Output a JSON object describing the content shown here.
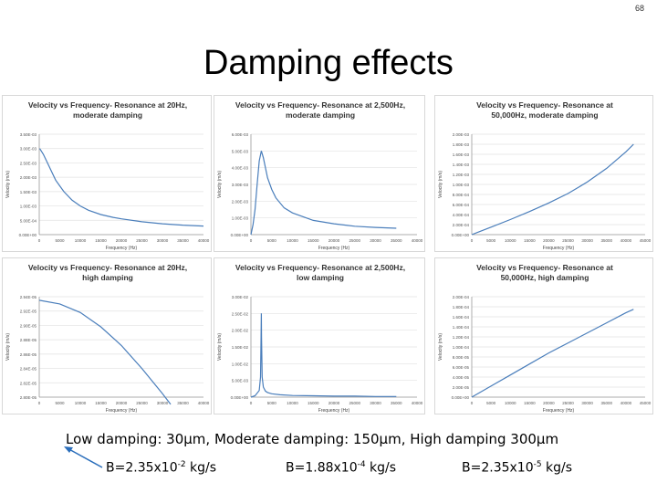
{
  "page_number": "68",
  "slide_title": "Damping effects",
  "caption": "Low damping: 30µm, Moderate damping: 150µm, High damping 300µm",
  "b_values": [
    {
      "prefix": "B=2.35x10",
      "exp": "-2",
      "unit": " kg/s"
    },
    {
      "prefix": "B=1.88x10",
      "exp": "-4",
      "unit": " kg/s"
    },
    {
      "prefix": "B=2.35x10",
      "exp": "-5",
      "unit": " kg/s"
    }
  ],
  "chart_data": [
    {
      "type": "line",
      "title": "Velocity vs Frequency- Resonance at 20Hz, moderate damping",
      "xlabel": "Frequency (Hz)",
      "ylabel": "Velocity (m/s)",
      "xticks": [
        "0",
        "5000",
        "10000",
        "15000",
        "20000",
        "25000",
        "30000",
        "35000",
        "40000"
      ],
      "yticks": [
        "0.00E+00",
        "5.00E-04",
        "1.00E-03",
        "1.50E-03",
        "2.00E-03",
        "2.50E-03",
        "3.00E-03",
        "3.50E-03"
      ],
      "xlim": [
        0,
        40000
      ],
      "ylim": [
        0,
        0.0035
      ],
      "x": [
        100,
        1000,
        2000,
        3000,
        4000,
        5000,
        6000,
        8000,
        10000,
        12000,
        15000,
        18000,
        20000,
        25000,
        30000,
        35000,
        40000
      ],
      "y": [
        0.003,
        0.0028,
        0.0025,
        0.0022,
        0.0019,
        0.0017,
        0.0015,
        0.0012,
        0.001,
        0.00085,
        0.0007,
        0.0006,
        0.00055,
        0.00045,
        0.00038,
        0.00033,
        0.0003
      ]
    },
    {
      "type": "line",
      "title": "Velocity vs Frequency- Resonance at 2,500Hz, moderate damping",
      "xlabel": "Frequency (Hz)",
      "ylabel": "Velocity (m/s)",
      "xticks": [
        "0",
        "5000",
        "10000",
        "15000",
        "20000",
        "25000",
        "30000",
        "35000",
        "40000"
      ],
      "yticks": [
        "0.00E+00",
        "1.00E-03",
        "2.00E-03",
        "3.00E-03",
        "4.00E-03",
        "5.00E-03",
        "6.00E-03"
      ],
      "xlim": [
        0,
        40000
      ],
      "ylim": [
        0,
        0.006
      ],
      "x": [
        0,
        500,
        1000,
        1500,
        2000,
        2500,
        3000,
        3500,
        4000,
        5000,
        6000,
        8000,
        10000,
        15000,
        20000,
        25000,
        30000,
        35000
      ],
      "y": [
        0.0,
        0.0006,
        0.0015,
        0.003,
        0.0044,
        0.005,
        0.0046,
        0.004,
        0.0034,
        0.0027,
        0.0022,
        0.0016,
        0.0013,
        0.00085,
        0.00065,
        0.0005,
        0.00043,
        0.00038
      ]
    },
    {
      "type": "line",
      "title": "Velocity vs Frequency- Resonance at 50,000Hz, moderate damping",
      "xlabel": "Frequency (Hz)",
      "ylabel": "Velocity (m/s)",
      "xticks": [
        "0",
        "5000",
        "10000",
        "15000",
        "20000",
        "25000",
        "30000",
        "35000",
        "40000",
        "45000"
      ],
      "yticks": [
        "0.00E+00",
        "2.00E-04",
        "4.00E-04",
        "6.00E-04",
        "8.00E-04",
        "1.00E-03",
        "1.20E-03",
        "1.40E-03",
        "1.60E-03",
        "1.80E-03",
        "2.00E-03"
      ],
      "xlim": [
        0,
        45000
      ],
      "ylim": [
        0,
        0.002
      ],
      "x": [
        0,
        5000,
        10000,
        15000,
        20000,
        25000,
        30000,
        35000,
        40000,
        42000
      ],
      "y": [
        0.0,
        0.00015,
        0.0003,
        0.00046,
        0.00063,
        0.00082,
        0.00105,
        0.00132,
        0.00165,
        0.0018
      ]
    },
    {
      "type": "line",
      "title": "Velocity vs Frequency- Resonance at 20Hz, high damping",
      "xlabel": "Frequency (Hz)",
      "ylabel": "Velocity (m/s)",
      "xticks": [
        "0",
        "5000",
        "10000",
        "15000",
        "20000",
        "25000",
        "30000",
        "35000",
        "40000"
      ],
      "yticks": [
        "2.80E-05",
        "2.82E-05",
        "2.84E-05",
        "2.86E-05",
        "2.88E-05",
        "2.90E-05",
        "2.92E-05",
        "2.94E-05"
      ],
      "xlim": [
        0,
        40000
      ],
      "ylim": [
        2.8e-05,
        2.94e-05
      ],
      "x": [
        0,
        5000,
        10000,
        15000,
        20000,
        25000,
        30000,
        32000
      ],
      "y": [
        2.935e-05,
        2.93e-05,
        2.918e-05,
        2.898e-05,
        2.872e-05,
        2.84e-05,
        2.805e-05,
        2.79e-05
      ]
    },
    {
      "type": "line",
      "title": "Velocity vs Frequency- Resonance at 2,500Hz, low damping",
      "xlabel": "Frequency (Hz)",
      "ylabel": "Velocity (m/s)",
      "xticks": [
        "0",
        "5000",
        "10000",
        "15000",
        "20000",
        "25000",
        "30000",
        "35000",
        "40000"
      ],
      "yticks": [
        "0.00E+00",
        "5.00E-03",
        "1.00E-02",
        "1.50E-02",
        "2.00E-02",
        "2.50E-02",
        "3.00E-02"
      ],
      "xlim": [
        0,
        40000
      ],
      "ylim": [
        0,
        0.03
      ],
      "x": [
        0,
        1000,
        2000,
        2300,
        2450,
        2500,
        2550,
        2700,
        3000,
        3500,
        4000,
        5000,
        7000,
        10000,
        15000,
        20000,
        25000,
        30000,
        35000
      ],
      "y": [
        0.0,
        0.0004,
        0.002,
        0.006,
        0.018,
        0.025,
        0.018,
        0.006,
        0.003,
        0.0018,
        0.0014,
        0.001,
        0.0007,
        0.0005,
        0.0004,
        0.0003,
        0.0003,
        0.0002,
        0.0002
      ]
    },
    {
      "type": "line",
      "title": "Velocity vs Frequency- Resonance at 50,000Hz, high damping",
      "xlabel": "Frequency (Hz)",
      "ylabel": "Velocity (m/s)",
      "xticks": [
        "0",
        "5000",
        "10000",
        "15000",
        "20000",
        "25000",
        "30000",
        "35000",
        "40000",
        "45000"
      ],
      "yticks": [
        "0.00E+00",
        "2.00E-05",
        "4.00E-05",
        "6.00E-05",
        "8.00E-05",
        "1.00E-04",
        "1.20E-04",
        "1.40E-04",
        "1.60E-04",
        "1.80E-04",
        "2.00E-04"
      ],
      "xlim": [
        0,
        45000
      ],
      "ylim": [
        0,
        0.0002
      ],
      "x": [
        0,
        5000,
        10000,
        15000,
        20000,
        25000,
        30000,
        35000,
        40000,
        42000
      ],
      "y": [
        0.0,
        2.2e-05,
        4.4e-05,
        6.6e-05,
        8.8e-05,
        0.000108,
        0.000128,
        0.000148,
        0.000168,
        0.000175
      ]
    }
  ]
}
